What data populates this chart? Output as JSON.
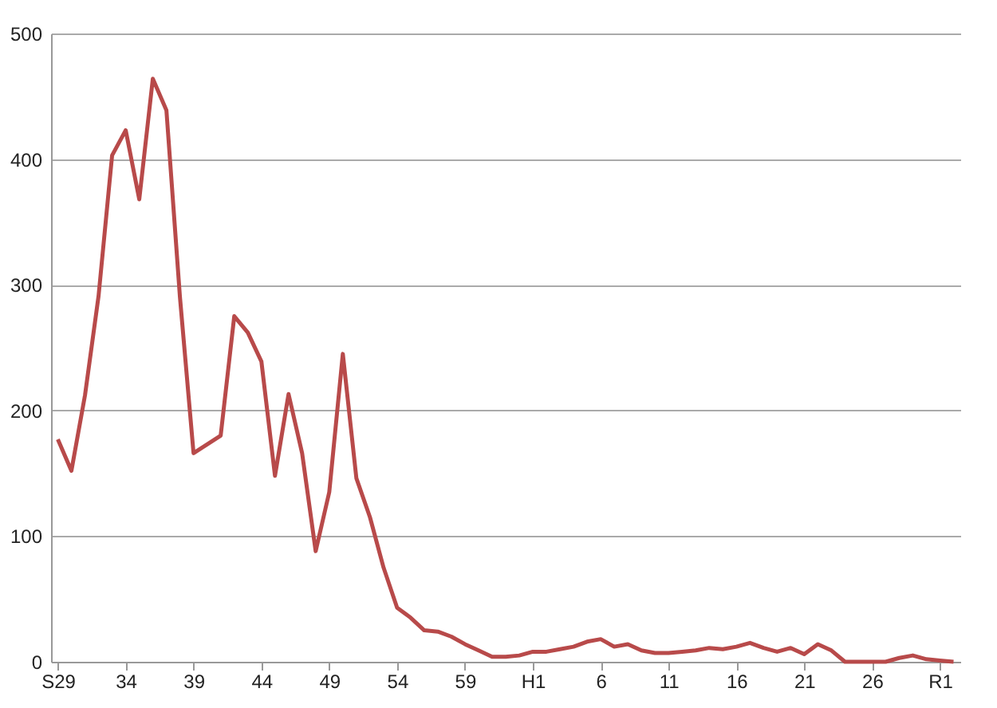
{
  "chart_data": {
    "type": "line",
    "categories": [
      "S29",
      null,
      null,
      null,
      null,
      "34",
      null,
      null,
      null,
      null,
      "39",
      null,
      null,
      null,
      null,
      "44",
      null,
      null,
      null,
      null,
      "49",
      null,
      null,
      null,
      null,
      "54",
      null,
      null,
      null,
      null,
      "59",
      null,
      null,
      null,
      null,
      "H1",
      null,
      null,
      null,
      null,
      "6",
      null,
      null,
      null,
      null,
      "11",
      null,
      null,
      null,
      null,
      "16",
      null,
      null,
      null,
      null,
      "21",
      null,
      null,
      null,
      null,
      "26",
      null,
      null,
      null,
      null,
      "R1",
      null
    ],
    "series": [
      {
        "color": "#b84a4a",
        "values": [
          177,
          152,
          212,
          291,
          403,
          423,
          368,
          464,
          439,
          290,
          166,
          173,
          180,
          275,
          262,
          239,
          148,
          213,
          166,
          88,
          135,
          245,
          146,
          115,
          75,
          43,
          35,
          25,
          24,
          20,
          14,
          9,
          4,
          4,
          5,
          8,
          8,
          10,
          12,
          16,
          18,
          12,
          14,
          9,
          7,
          7,
          8,
          9,
          11,
          10,
          12,
          15,
          11,
          8,
          11,
          6,
          14,
          9,
          0,
          0,
          0,
          0,
          3,
          5,
          2,
          1,
          0
        ]
      }
    ],
    "ylim": [
      0,
      500
    ],
    "yticks": [
      0,
      100,
      200,
      300,
      400,
      500
    ],
    "grid": "y",
    "marker": "none",
    "line_style": "solid"
  }
}
